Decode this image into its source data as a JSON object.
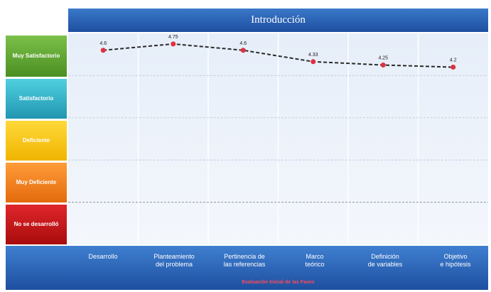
{
  "chart_data": {
    "type": "line",
    "title": "Introducción",
    "xlabel": "Evaluación Inicial de las Fases",
    "categories": [
      "Desarrollo",
      "Planteamiento\ndel problema",
      "Pertinencia de\nlas referencias",
      "Marco\nteórico",
      "Definición\nde variables",
      "Objetivo\ne hipótesis"
    ],
    "y_bands": [
      {
        "label": "Muy Satisfactorio",
        "color": "#5aa02c"
      },
      {
        "label": "Satisfactorio",
        "color": "#2fb3c6"
      },
      {
        "label": "Deficiente",
        "color": "#f2c200"
      },
      {
        "label": "Muy Deficiente",
        "color": "#ef7d1a"
      },
      {
        "label": "No se desarrolló",
        "color": "#c40f0f"
      }
    ],
    "ylim": [
      0,
      5
    ],
    "series": [
      {
        "color": "#e0303f",
        "values": [
          4.6,
          4.75,
          4.6,
          4.33,
          4.25,
          4.2
        ]
      }
    ],
    "data_labels": [
      "4.6",
      "4.75",
      "4.6",
      "4.33",
      "4.25",
      "4.2"
    ]
  }
}
